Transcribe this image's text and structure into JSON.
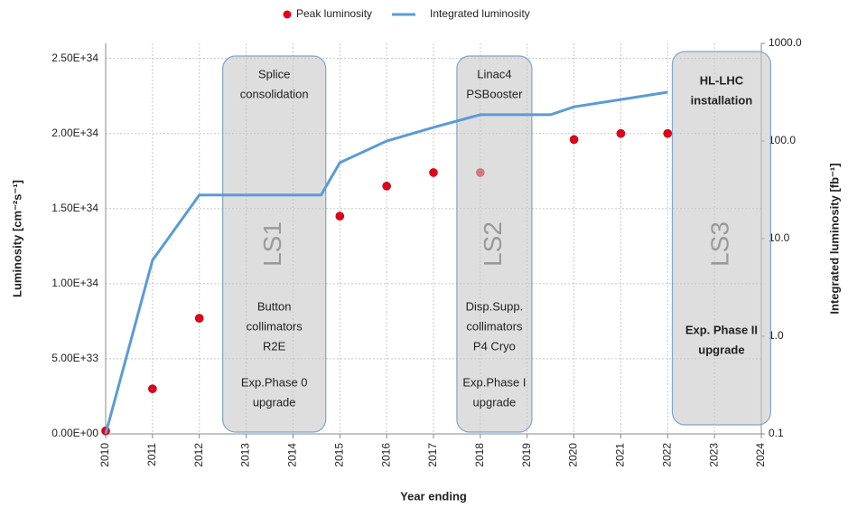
{
  "chart_data": {
    "type": "combo",
    "x_label": "Year ending",
    "y_label": "Luminosity [cm⁻²s⁻¹]",
    "y2_label": "Integrated luminosity [fb⁻¹]",
    "xlim": [
      2010,
      2024
    ],
    "xticks": [
      2010,
      2011,
      2012,
      2013,
      2014,
      2015,
      2016,
      2017,
      2018,
      2019,
      2020,
      2021,
      2022,
      2023,
      2024
    ],
    "ylim": [
      0,
      2.6e+34
    ],
    "yticks": [
      {
        "value": 0,
        "label": "0.00E+00"
      },
      {
        "value": 5e+33,
        "label": "5.00E+33"
      },
      {
        "value": 1e+34,
        "label": "1.00E+34"
      },
      {
        "value": 1.5e+34,
        "label": "1.50E+34"
      },
      {
        "value": 2e+34,
        "label": "2.00E+34"
      },
      {
        "value": 2.5e+34,
        "label": "2.50E+34"
      }
    ],
    "y2lim": [
      0.1,
      1000
    ],
    "y2_log": true,
    "y2ticks": [
      0.1,
      {
        "value": 1,
        "label": "1.0"
      },
      {
        "value": 10,
        "label": "10.0"
      },
      {
        "value": 100,
        "label": "100.0"
      },
      {
        "value": 1000,
        "label": "1000.0"
      }
    ],
    "grid": true,
    "legend": "top",
    "series": [
      {
        "name": "Peak luminosity",
        "type": "scatter",
        "color": "#e3001b",
        "x": [
          2010,
          2011,
          2012,
          2015,
          2016,
          2017,
          2018,
          2020,
          2021,
          2022
        ],
        "values": [
          2e+32,
          3e+33,
          7.7e+33,
          1.45e+34,
          1.65e+34,
          1.74e+34,
          1.74e+34,
          1.96e+34,
          2e+34,
          2e+34
        ]
      },
      {
        "name": "Integrated luminosity",
        "type": "line",
        "axis": "y2",
        "color": "#5b9bd5",
        "x": [
          2010,
          2011,
          2012,
          2014.6,
          2015,
          2016,
          2017,
          2018,
          2019.5,
          2020,
          2021,
          2022
        ],
        "values": [
          0.1,
          6,
          28,
          28,
          60,
          100,
          138,
          186,
          186,
          224,
          266,
          316
        ]
      }
    ],
    "periods": [
      {
        "label": "LS1",
        "start": 2012.5,
        "end": 2014.7,
        "top_lines": [
          "Splice",
          "consolidation"
        ],
        "notes": [
          "Button",
          "collimators",
          "R2E"
        ],
        "upgrade": [
          "Exp.Phase 0",
          "upgrade"
        ]
      },
      {
        "label": "LS2",
        "start": 2017.5,
        "end": 2019.1,
        "top_lines": [
          "Linac4",
          "PSBooster"
        ],
        "notes": [
          "Disp.Supp.",
          "collimators",
          "P4 Cryo"
        ],
        "upgrade": [
          "Exp.Phase I",
          "upgrade"
        ]
      },
      {
        "label": "LS3",
        "start": 2022.1,
        "end": 2024.2,
        "bold": true,
        "top_lines": [
          "HL-LHC",
          "installation"
        ],
        "notes": [],
        "upgrade": [
          "Exp. Phase II",
          "upgrade"
        ]
      }
    ]
  }
}
